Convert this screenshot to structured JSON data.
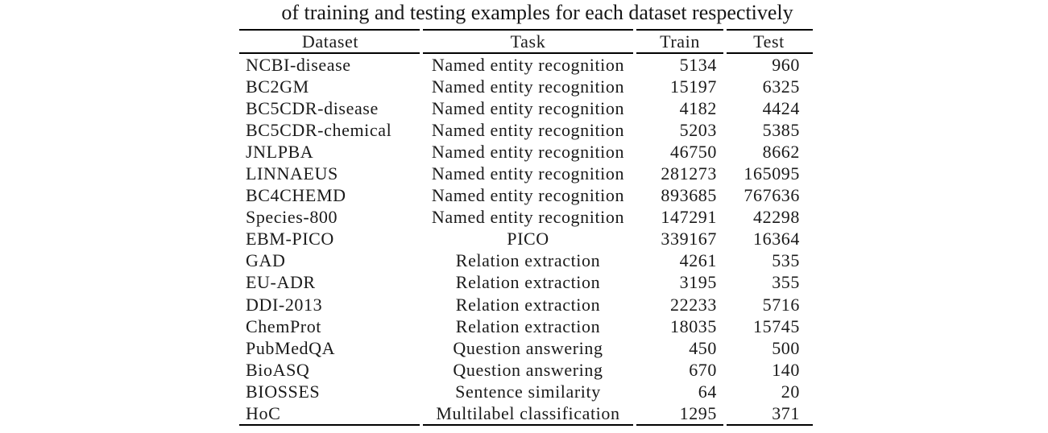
{
  "caption": {
    "text": "of training and testing examples for each dataset respectively"
  },
  "table": {
    "columns": [
      "Dataset",
      "Task",
      "Train",
      "Test"
    ],
    "rows": [
      {
        "dataset": "NCBI-disease",
        "task": "Named entity recognition",
        "train": "5134",
        "test": "960"
      },
      {
        "dataset": "BC2GM",
        "task": "Named entity recognition",
        "train": "15197",
        "test": "6325"
      },
      {
        "dataset": "BC5CDR-disease",
        "task": "Named entity recognition",
        "train": "4182",
        "test": "4424"
      },
      {
        "dataset": "BC5CDR-chemical",
        "task": "Named entity recognition",
        "train": "5203",
        "test": "5385"
      },
      {
        "dataset": "JNLPBA",
        "task": "Named entity recognition",
        "train": "46750",
        "test": "8662"
      },
      {
        "dataset": "LINNAEUS",
        "task": "Named entity recognition",
        "train": "281273",
        "test": "165095"
      },
      {
        "dataset": "BC4CHEMD",
        "task": "Named entity recognition",
        "train": "893685",
        "test": "767636"
      },
      {
        "dataset": "Species-800",
        "task": "Named entity recognition",
        "train": "147291",
        "test": "42298"
      },
      {
        "dataset": "EBM-PICO",
        "task": "PICO",
        "train": "339167",
        "test": "16364"
      },
      {
        "dataset": "GAD",
        "task": "Relation extraction",
        "train": "4261",
        "test": "535"
      },
      {
        "dataset": "EU-ADR",
        "task": "Relation extraction",
        "train": "3195",
        "test": "355"
      },
      {
        "dataset": "DDI-2013",
        "task": "Relation extraction",
        "train": "22233",
        "test": "5716"
      },
      {
        "dataset": "ChemProt",
        "task": "Relation extraction",
        "train": "18035",
        "test": "15745"
      },
      {
        "dataset": "PubMedQA",
        "task": "Question answering",
        "train": "450",
        "test": "500"
      },
      {
        "dataset": "BioASQ",
        "task": "Question answering",
        "train": "670",
        "test": "140"
      },
      {
        "dataset": "BIOSSES",
        "task": "Sentence similarity",
        "train": "64",
        "test": "20"
      },
      {
        "dataset": "HoC",
        "task": "Multilabel classification",
        "train": "1295",
        "test": "371"
      }
    ]
  },
  "colors": {
    "background": "#ffffff",
    "text": "#1a1a1a",
    "rule": "#000000"
  }
}
